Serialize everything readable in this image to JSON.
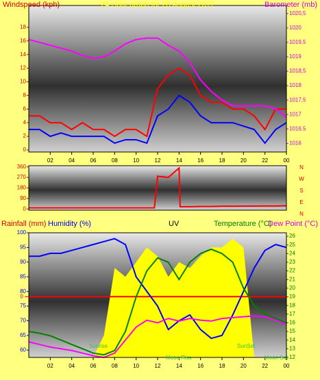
{
  "chart_data": [
    {
      "type": "line",
      "title": "24 Hour graph for 28 August 2017",
      "ylabel": "Windspeed (kph)",
      "y2label": "Barometer (mb)",
      "xlim": [
        0,
        24
      ],
      "xticks": [
        {
          "value": 2,
          "label": "02"
        },
        {
          "value": 4,
          "label": "04"
        },
        {
          "value": 6,
          "label": "06"
        },
        {
          "value": 8,
          "label": "08"
        },
        10,
        12,
        14,
        16,
        18,
        20,
        22,
        {
          "value": 24,
          "label": "00"
        }
      ],
      "ylim": [
        -0.3,
        21.2
      ],
      "yticks": [
        0,
        2,
        4,
        6,
        8,
        10,
        12,
        14,
        16,
        18
      ],
      "y2lim": [
        1015.7,
        1020.78
      ],
      "y2ticks": [
        1016,
        {
          "value": 1016.5,
          "label": "1016,5"
        },
        1017,
        {
          "value": 1017.5,
          "label": "1017,5"
        },
        1018,
        {
          "value": 1018.5,
          "label": "1018,5"
        },
        1019,
        {
          "value": 1019.5,
          "label": "1019,5"
        },
        1020,
        {
          "value": 1020.5,
          "label": "1020,5"
        }
      ],
      "x": [
        0,
        1,
        2,
        3,
        4,
        5,
        6,
        7,
        8,
        9,
        10,
        11,
        12,
        13,
        14,
        15,
        16,
        17,
        18,
        19,
        20,
        21,
        22,
        23,
        24
      ],
      "series": [
        {
          "color": "#ff0000",
          "values": [
            5,
            5,
            4,
            4,
            3,
            4,
            3,
            3,
            2,
            3,
            3,
            2,
            9,
            11,
            12,
            11,
            8,
            7,
            7,
            6,
            6,
            5,
            3,
            6,
            6
          ]
        },
        {
          "color": "#0000ff",
          "values": [
            3,
            3,
            2,
            2.5,
            2,
            2,
            2,
            2,
            1,
            1.5,
            1.5,
            1,
            5,
            6,
            8,
            7,
            5,
            4,
            4,
            4,
            3.5,
            3,
            1,
            3,
            4
          ]
        },
        {
          "color": "#ff00ff",
          "axis": "y2",
          "values": [
            1019.6,
            1019.5,
            1019.4,
            1019.3,
            1019.2,
            1019.05,
            1018.95,
            1019.0,
            1019.2,
            1019.45,
            1019.6,
            1019.65,
            1019.65,
            1019.4,
            1019.2,
            1018.8,
            1018.2,
            1017.8,
            1017.5,
            1017.3,
            1017.3,
            1017.3,
            1017.3,
            1017.2,
            1016.9
          ]
        }
      ]
    },
    {
      "type": "line",
      "xlim": [
        0,
        24
      ],
      "ylim": [
        -10,
        370
      ],
      "yticks": [
        0,
        90,
        180,
        270,
        360
      ],
      "compass": [
        "N",
        "W",
        "S",
        "E",
        "N"
      ],
      "x": [
        0,
        1,
        2,
        3,
        4,
        5,
        6,
        7,
        8,
        9,
        10,
        11,
        11.7,
        12,
        13,
        14,
        14.1,
        15,
        16,
        17,
        18,
        19,
        20,
        21,
        22,
        23,
        24
      ],
      "series": [
        {
          "color": "#ff0000",
          "values": [
            10,
            10,
            10,
            10,
            10,
            10,
            10,
            10,
            10,
            10,
            10,
            10,
            10,
            280,
            270,
            350,
            20,
            20,
            22,
            22,
            24,
            24,
            25,
            25,
            26,
            26,
            28
          ]
        }
      ]
    },
    {
      "type": "line",
      "labels": [
        "Rainfall (mm)",
        "Humidity (%)",
        "UV",
        "Temperature (°C)",
        "Dew Point (°C)"
      ],
      "annotations": [
        "Sunrise",
        "Moon Rise",
        "SunSet",
        "Moon Set"
      ],
      "xlim": [
        0,
        24
      ],
      "xticks": [
        {
          "value": 2,
          "label": "02"
        },
        {
          "value": 4,
          "label": "04"
        },
        {
          "value": 6,
          "label": "06"
        },
        {
          "value": 8,
          "label": "08"
        },
        10,
        12,
        14,
        16,
        18,
        20,
        22,
        {
          "value": 24,
          "label": "00"
        }
      ],
      "ylim": [
        57.5,
        100
      ],
      "yticks": [
        60,
        65,
        70,
        75,
        80,
        85,
        90,
        95,
        100
      ],
      "y2lim": [
        12,
        26.4
      ],
      "y2ticks": [
        12,
        13,
        14,
        15,
        16,
        17,
        18,
        19,
        20,
        21,
        22,
        23,
        24,
        25,
        26
      ],
      "y3lim": [
        -1,
        1.05
      ],
      "y3ticks": [
        0
      ],
      "x": [
        0,
        1,
        2,
        3,
        4,
        5,
        6,
        7,
        8,
        9,
        10,
        11,
        12,
        13,
        14,
        15,
        16,
        17,
        18,
        19,
        20,
        21,
        22,
        23,
        24
      ],
      "series": [
        {
          "name": "UV",
          "color": "#ffff00",
          "area": true,
          "values": [
            57.5,
            57.5,
            57.5,
            57.5,
            57.5,
            57.5,
            57.5,
            65,
            88,
            85,
            90,
            95,
            92,
            85,
            90,
            88,
            92,
            95,
            95,
            98,
            95,
            57.5,
            57.5,
            57.5,
            57.5
          ]
        },
        {
          "color": "#ff0000",
          "axis": "y3",
          "values": [
            0,
            0,
            0,
            0,
            0,
            0,
            0,
            0,
            0,
            0,
            0,
            0,
            0,
            0,
            0,
            0,
            0,
            0,
            0,
            0,
            0,
            0,
            0,
            0,
            0
          ]
        },
        {
          "color": "#0000ff",
          "values": [
            92,
            92,
            93,
            93,
            94,
            95,
            96,
            97,
            98,
            96,
            85,
            80,
            75,
            67,
            70,
            72,
            67,
            64,
            65,
            72,
            80,
            88,
            94,
            96,
            95
          ]
        },
        {
          "color": "#008000",
          "axis": "y2",
          "values": [
            15,
            14.8,
            14.5,
            14,
            13.5,
            13,
            12.5,
            12.3,
            12.8,
            15,
            19,
            22,
            23.5,
            23,
            21,
            23,
            24,
            24.5,
            24,
            23,
            20,
            18,
            17,
            16.5,
            16
          ]
        },
        {
          "color": "#ff00ff",
          "axis": "y2",
          "values": [
            13.8,
            13.5,
            13.2,
            13,
            12.8,
            12.5,
            12.2,
            12,
            12.5,
            14,
            15.5,
            16.3,
            16,
            16.5,
            16.2,
            16.5,
            16.3,
            16.2,
            16.5,
            16.6,
            16.7,
            16.8,
            16.7,
            16.3,
            15.8
          ]
        }
      ]
    }
  ]
}
